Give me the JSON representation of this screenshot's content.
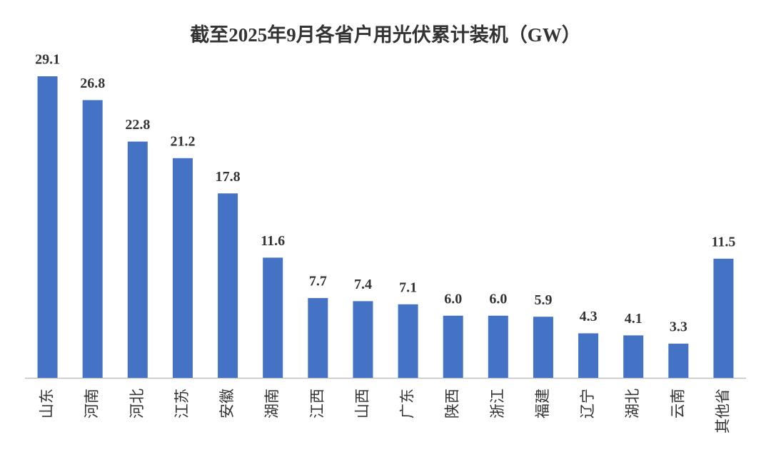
{
  "chart_data": {
    "type": "bar",
    "title": "截至2025年9月各省户用光伏累计装机（GW）",
    "categories": [
      "山东",
      "河南",
      "河北",
      "江苏",
      "安徽",
      "湖南",
      "江西",
      "山西",
      "广东",
      "陕西",
      "浙江",
      "福建",
      "辽宁",
      "湖北",
      "云南",
      "其他省"
    ],
    "values": [
      29.1,
      26.8,
      22.8,
      21.2,
      17.8,
      11.6,
      7.7,
      7.4,
      7.1,
      6.0,
      6.0,
      5.9,
      4.3,
      4.1,
      3.3,
      11.5
    ],
    "value_labels": [
      "29.1",
      "26.8",
      "22.8",
      "21.2",
      "17.8",
      "11.6",
      "7.7",
      "7.4",
      "7.1",
      "6.0",
      "6.0",
      "5.9",
      "4.3",
      "4.1",
      "3.3",
      "11.5"
    ],
    "color": "#4472c4"
  }
}
